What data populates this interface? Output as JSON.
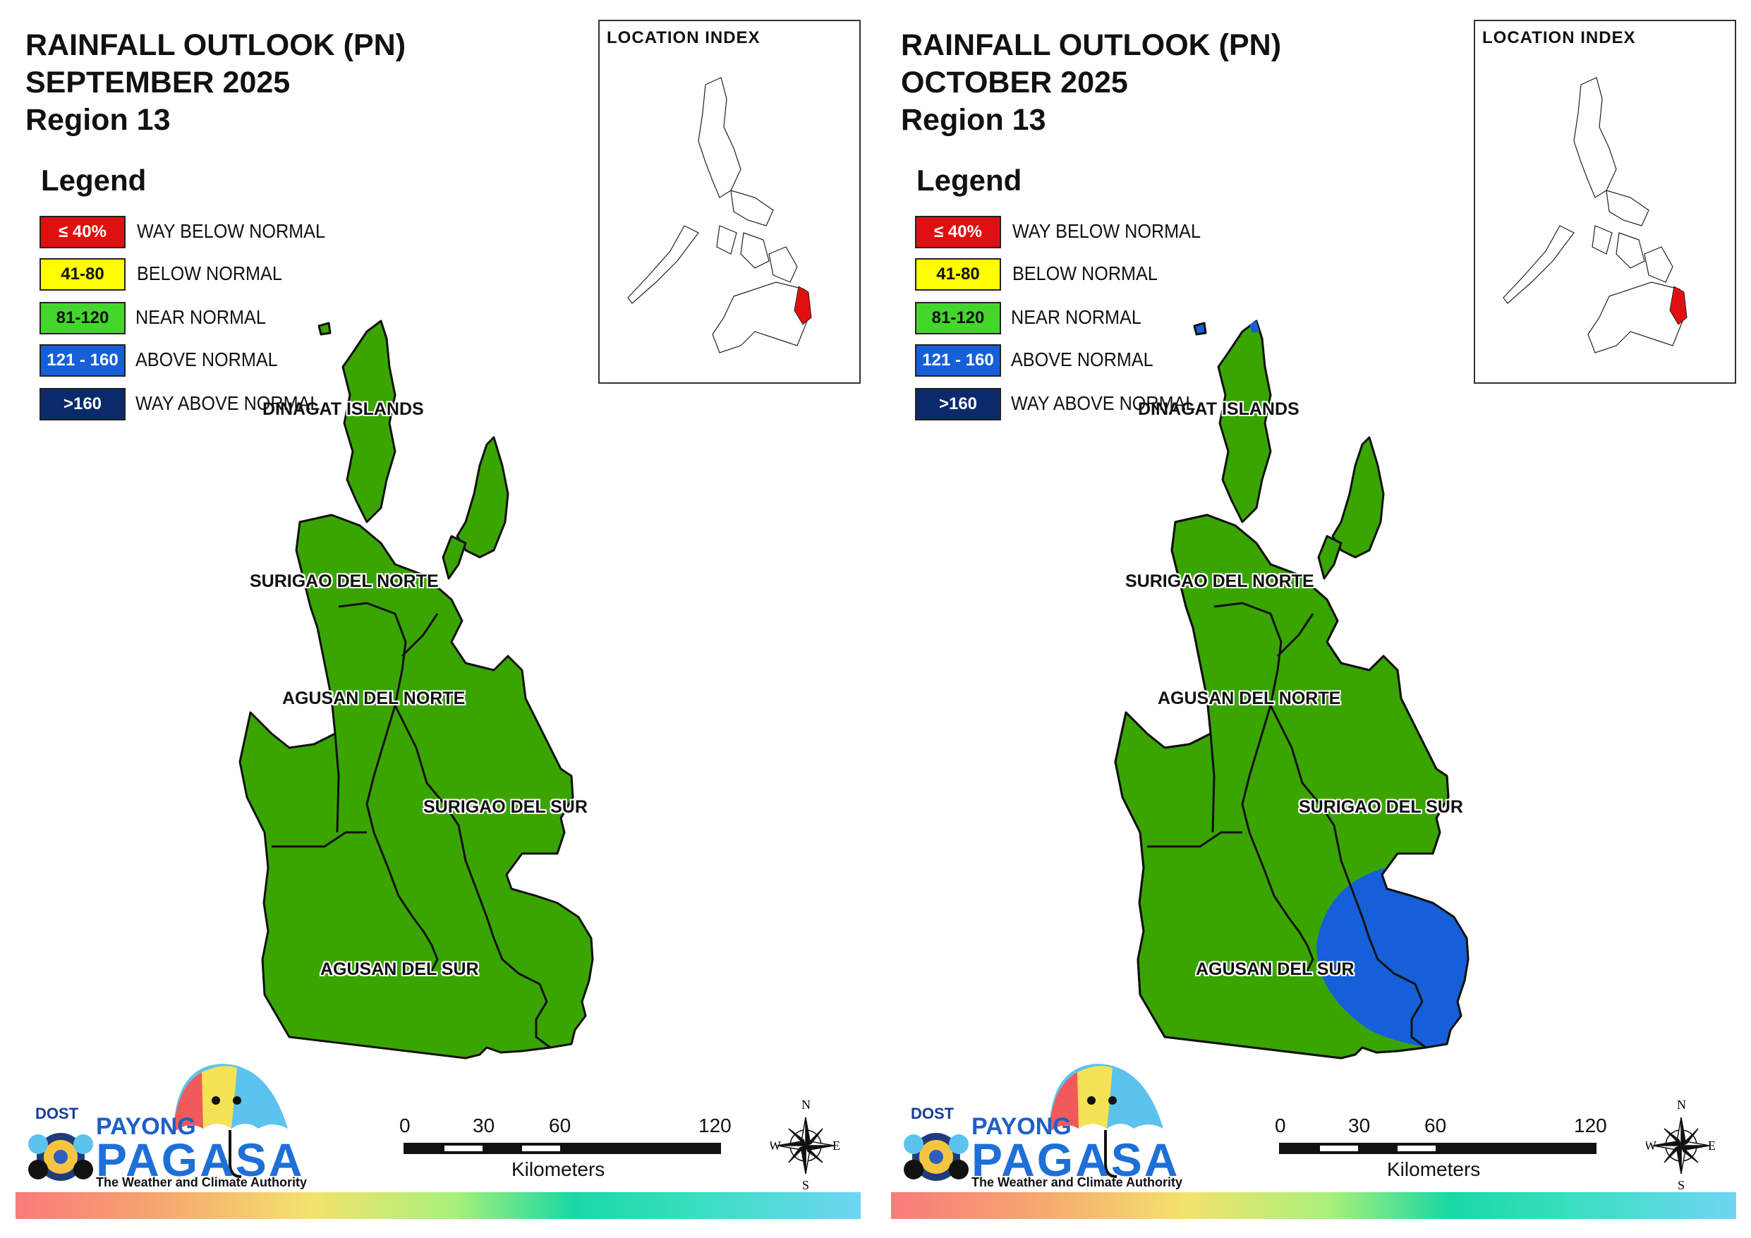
{
  "panels": [
    {
      "title_lines": [
        "RAINFALL OUTLOOK (PN)",
        "SEPTEMBER 2025",
        "Region 13"
      ],
      "legend_title": "Legend",
      "legend": [
        {
          "code": "≤ 40%",
          "label": "WAY BELOW NORMAL",
          "color": "#e01010",
          "text_color": "#ffffff"
        },
        {
          "code": "41-80",
          "label": "BELOW NORMAL",
          "color": "#ffff00",
          "text_color": "#111111"
        },
        {
          "code": "81-120",
          "label": "NEAR NORMAL",
          "color": "#44d62c",
          "text_color": "#111111"
        },
        {
          "code": "121 - 160",
          "label": "ABOVE NORMAL",
          "color": "#1560d8",
          "text_color": "#ffffff"
        },
        {
          "code": ">160",
          "label": "WAY ABOVE NORMAL",
          "color": "#0a2a6a",
          "text_color": "#ffffff"
        }
      ],
      "inset_title": "LOCATION INDEX",
      "provinces": [
        "DINAGAT ISLANDS",
        "SURIGAO DEL NORTE",
        "AGUSAN DEL NORTE",
        "SURIGAO DEL SUR",
        "AGUSAN DEL SUR"
      ],
      "map_fill": "#3aa500",
      "above_normal_zone": false,
      "scale": {
        "ticks": [
          "0",
          "30",
          "60",
          "120"
        ],
        "unit": "Kilometers"
      },
      "compass": {
        "n": "N",
        "s": "S",
        "e": "E",
        "w": "W"
      },
      "logo": {
        "dost": "DOST",
        "payong": "PAYONG",
        "pagasa": "PAGASA",
        "tagline": "The Weather and Climate Authority"
      }
    },
    {
      "title_lines": [
        "RAINFALL OUTLOOK (PN)",
        "OCTOBER 2025",
        "Region 13"
      ],
      "legend_title": "Legend",
      "legend": [
        {
          "code": "≤ 40%",
          "label": "WAY BELOW NORMAL",
          "color": "#e01010",
          "text_color": "#ffffff"
        },
        {
          "code": "41-80",
          "label": "BELOW NORMAL",
          "color": "#ffff00",
          "text_color": "#111111"
        },
        {
          "code": "81-120",
          "label": "NEAR NORMAL",
          "color": "#44d62c",
          "text_color": "#111111"
        },
        {
          "code": "121 - 160",
          "label": "ABOVE NORMAL",
          "color": "#1560d8",
          "text_color": "#ffffff"
        },
        {
          "code": ">160",
          "label": "WAY ABOVE NORMAL",
          "color": "#0a2a6a",
          "text_color": "#ffffff"
        }
      ],
      "inset_title": "LOCATION INDEX",
      "provinces": [
        "DINAGAT ISLANDS",
        "SURIGAO DEL NORTE",
        "AGUSAN DEL NORTE",
        "SURIGAO DEL SUR",
        "AGUSAN DEL SUR"
      ],
      "map_fill": "#3aa500",
      "above_normal_zone": true,
      "scale": {
        "ticks": [
          "0",
          "30",
          "60",
          "120"
        ],
        "unit": "Kilometers"
      },
      "compass": {
        "n": "N",
        "s": "S",
        "e": "E",
        "w": "W"
      },
      "logo": {
        "dost": "DOST",
        "payong": "PAYONG",
        "pagasa": "PAGASA",
        "tagline": "The Weather and Climate Authority"
      }
    }
  ]
}
